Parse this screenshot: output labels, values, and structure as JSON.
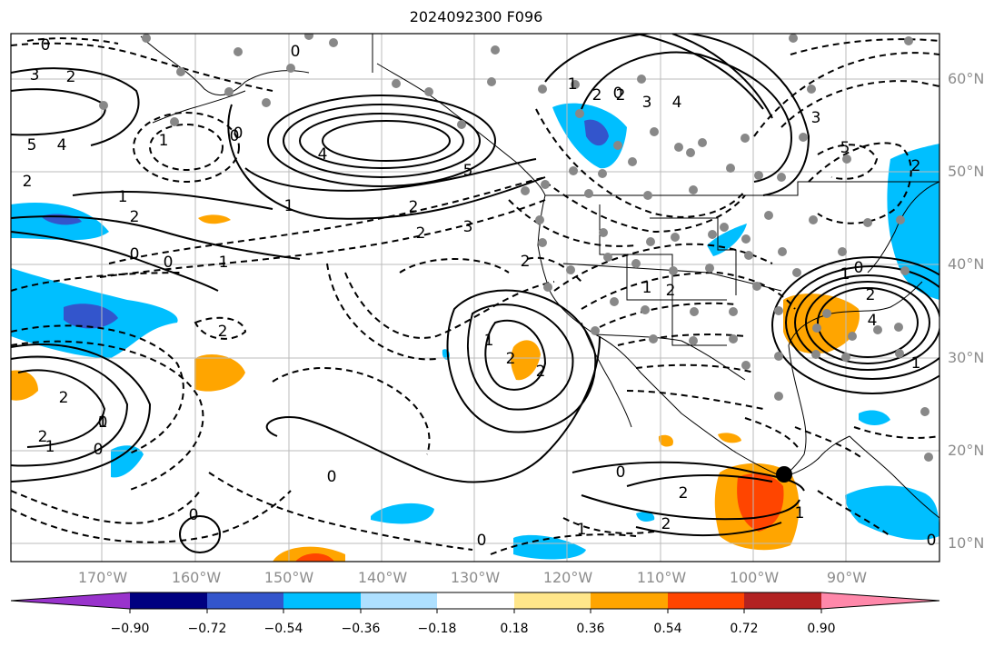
{
  "title": "2024092300 F096",
  "lon_labels": [
    "170°W",
    "160°W",
    "150°W",
    "140°W",
    "130°W",
    "120°W",
    "110°W",
    "100°W",
    "90°W"
  ],
  "lat_labels": [
    "60°N",
    "50°N",
    "40°N",
    "30°N",
    "20°N",
    "10°N"
  ],
  "colorbar": {
    "ticks": [
      "−0.90",
      "−0.72",
      "−0.54",
      "−0.36",
      "−0.18",
      "0.18",
      "0.36",
      "0.54",
      "0.72",
      "0.90"
    ],
    "colors": [
      "#9933cc",
      "#000080",
      "#3355cc",
      "#00bfff",
      "#aee0ff",
      "#ffffff",
      "#ffe68a",
      "#ffa500",
      "#ff4500",
      "#b22222",
      "#ff88aa"
    ]
  },
  "contour_labels": [
    "0",
    "3",
    "2",
    "5",
    "4",
    "1",
    "2",
    "0",
    "1",
    "4",
    "5",
    "2",
    "1",
    "0",
    "2",
    "2",
    "3",
    "2",
    "2",
    "1",
    "0",
    "0",
    "0",
    "2",
    "1",
    "3",
    "0",
    "2",
    "4",
    "3",
    "5",
    "4",
    "2",
    "1",
    "0",
    "2",
    "2",
    "1",
    "1",
    "0",
    "2",
    "1",
    "2",
    "0",
    "2",
    "0",
    "1",
    "1",
    "2",
    "2",
    "0",
    "0",
    "2",
    "1",
    "0",
    "1",
    "0"
  ]
}
